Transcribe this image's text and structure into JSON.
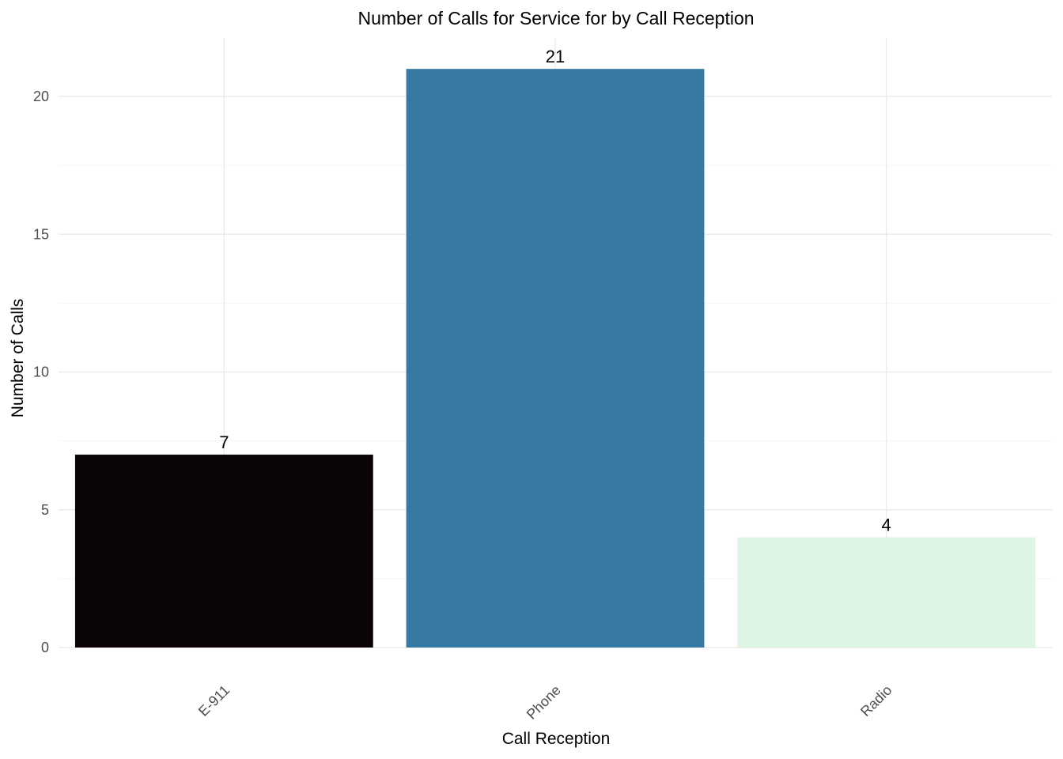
{
  "chart_data": {
    "type": "bar",
    "title": "Number of Calls for Service for by Call Reception",
    "xlabel": "Call Reception",
    "ylabel": "Number of Calls",
    "categories": [
      "E-911",
      "Phone",
      "Radio"
    ],
    "values": [
      7,
      21,
      4
    ],
    "colors": [
      "#0b0405",
      "#367aa4",
      "#def4e4"
    ],
    "ylim": [
      0,
      22
    ],
    "yticks": [
      0,
      5,
      10,
      15,
      20
    ],
    "ytick_labels": [
      "0",
      "5",
      "10",
      "15",
      "20"
    ],
    "data_labels": [
      "7",
      "21",
      "4"
    ],
    "grid": true,
    "legend": false
  }
}
